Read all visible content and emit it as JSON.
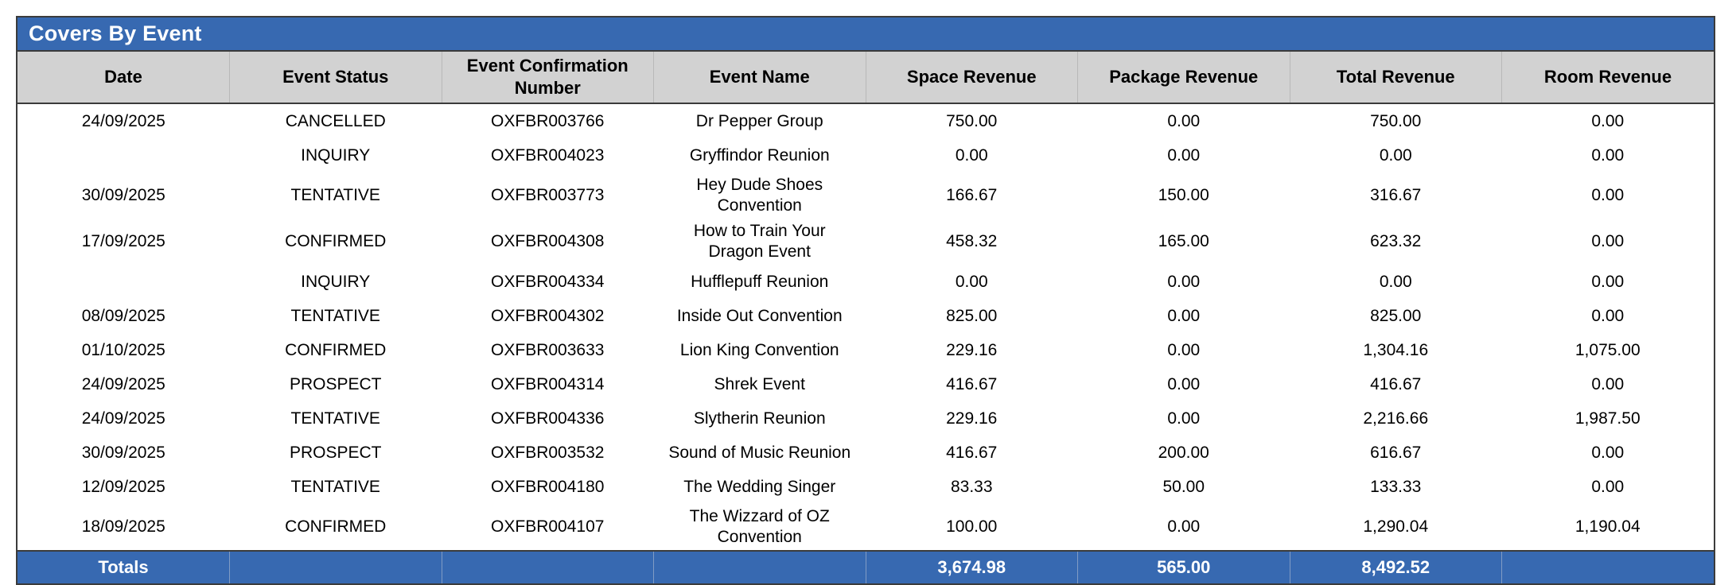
{
  "title": "Covers By Event",
  "columns": [
    "Date",
    "Event Status",
    "Event Confirmation Number",
    "Event Name",
    "Space Revenue",
    "Package Revenue",
    "Total Revenue",
    "Room Revenue"
  ],
  "rows": [
    [
      "24/09/2025",
      "CANCELLED",
      "OXFBR003766",
      "Dr Pepper Group",
      "750.00",
      "0.00",
      "750.00",
      "0.00"
    ],
    [
      "",
      "INQUIRY",
      "OXFBR004023",
      "Gryffindor Reunion",
      "0.00",
      "0.00",
      "0.00",
      "0.00"
    ],
    [
      "30/09/2025",
      "TENTATIVE",
      "OXFBR003773",
      "Hey Dude Shoes Convention",
      "166.67",
      "150.00",
      "316.67",
      "0.00"
    ],
    [
      "17/09/2025",
      "CONFIRMED",
      "OXFBR004308",
      "How to Train Your Dragon Event",
      "458.32",
      "165.00",
      "623.32",
      "0.00"
    ],
    [
      "",
      "INQUIRY",
      "OXFBR004334",
      "Hufflepuff Reunion",
      "0.00",
      "0.00",
      "0.00",
      "0.00"
    ],
    [
      "08/09/2025",
      "TENTATIVE",
      "OXFBR004302",
      "Inside Out Convention",
      "825.00",
      "0.00",
      "825.00",
      "0.00"
    ],
    [
      "01/10/2025",
      "CONFIRMED",
      "OXFBR003633",
      "Lion King Convention",
      "229.16",
      "0.00",
      "1,304.16",
      "1,075.00"
    ],
    [
      "24/09/2025",
      "PROSPECT",
      "OXFBR004314",
      "Shrek Event",
      "416.67",
      "0.00",
      "416.67",
      "0.00"
    ],
    [
      "24/09/2025",
      "TENTATIVE",
      "OXFBR004336",
      "Slytherin Reunion",
      "229.16",
      "0.00",
      "2,216.66",
      "1,987.50"
    ],
    [
      "30/09/2025",
      "PROSPECT",
      "OXFBR003532",
      "Sound of Music Reunion",
      "416.67",
      "200.00",
      "616.67",
      "0.00"
    ],
    [
      "12/09/2025",
      "TENTATIVE",
      "OXFBR004180",
      "The Wedding Singer",
      "83.33",
      "50.00",
      "133.33",
      "0.00"
    ],
    [
      "18/09/2025",
      "CONFIRMED",
      "OXFBR004107",
      "The Wizzard of OZ Convention",
      "100.00",
      "0.00",
      "1,290.04",
      "1,190.04"
    ]
  ],
  "totals": {
    "label": "Totals",
    "space_revenue": "3,674.98",
    "package_revenue": "565.00",
    "total_revenue": "8,492.52",
    "room_revenue": ""
  },
  "colors": {
    "accent_blue": "#3769B1",
    "header_gray": "#D2D2D2",
    "border_dark": "#3B3B3B"
  }
}
